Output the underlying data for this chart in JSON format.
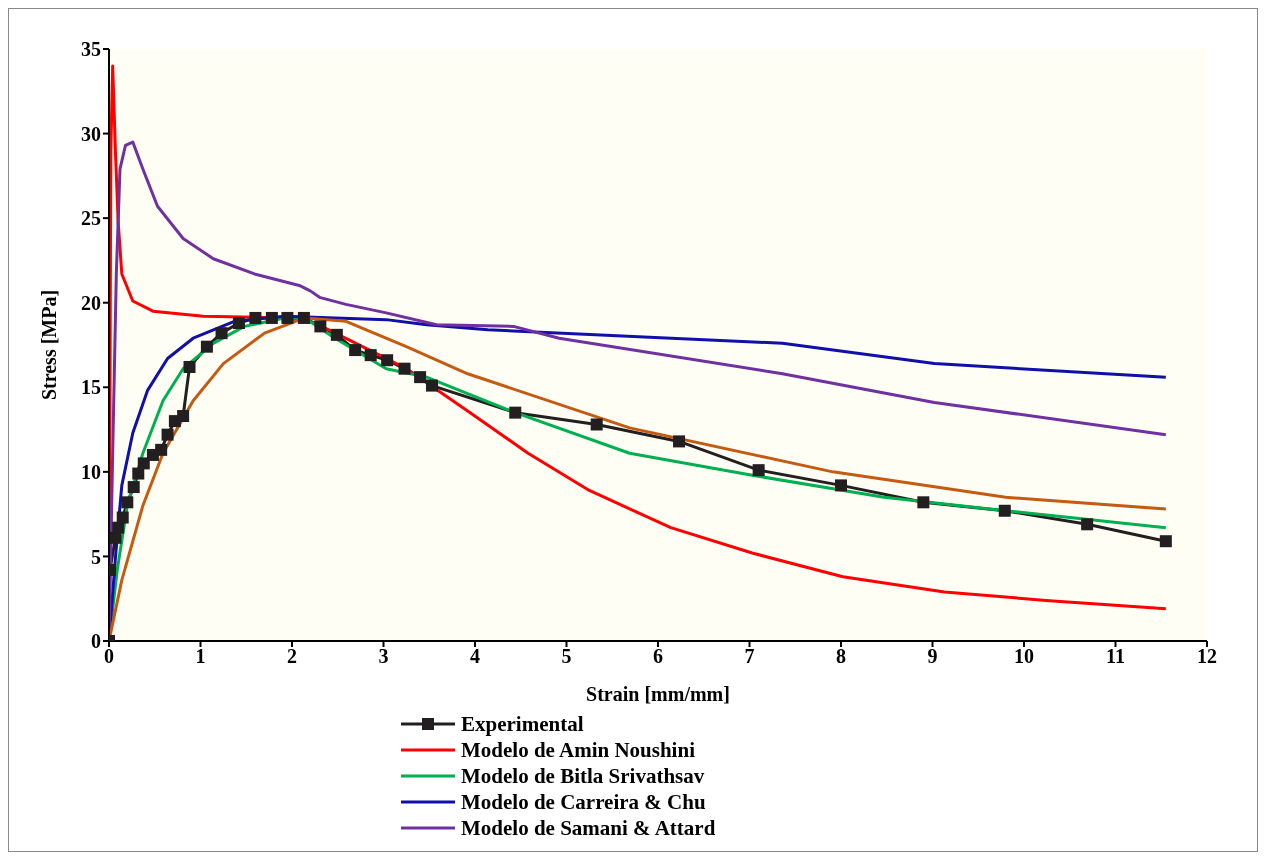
{
  "chart_data": {
    "type": "line",
    "xlabel": "Strain [mm/mm]",
    "ylabel": "Stress [MPa]",
    "xlim": [
      0,
      12
    ],
    "ylim": [
      0,
      35
    ],
    "xticks": [
      0,
      1,
      2,
      3,
      4,
      5,
      6,
      7,
      8,
      9,
      10,
      11,
      12
    ],
    "yticks": [
      0,
      5,
      10,
      15,
      20,
      25,
      30,
      35
    ],
    "grid": false,
    "legend": "bottom",
    "series": [
      {
        "name": "Experimental",
        "color": "#231f20",
        "marker": "square",
        "x": [
          0,
          0.01,
          0.07,
          0.1,
          0.15,
          0.2,
          0.27,
          0.32,
          0.38,
          0.48,
          0.57,
          0.64,
          0.72,
          0.81,
          0.88,
          1.07,
          1.23,
          1.42,
          1.6,
          1.78,
          1.95,
          2.13,
          2.31,
          2.49,
          2.69,
          2.86,
          3.04,
          3.23,
          3.4,
          3.53,
          4.44,
          5.33,
          6.23,
          7.1,
          8.0,
          8.9,
          9.79,
          10.69,
          11.55
        ],
        "values": [
          0,
          4.2,
          6.1,
          6.7,
          7.3,
          8.2,
          9.1,
          9.9,
          10.5,
          11.0,
          11.3,
          12.2,
          13.0,
          13.3,
          16.2,
          17.4,
          18.2,
          18.8,
          19.1,
          19.1,
          19.1,
          19.1,
          18.6,
          18.1,
          17.2,
          16.9,
          16.6,
          16.1,
          15.6,
          15.1,
          13.5,
          12.8,
          11.8,
          10.1,
          9.2,
          8.2,
          7.7,
          6.9,
          5.9
        ]
      },
      {
        "name": "Modelo de Amin Noushini",
        "color": "#ff0000",
        "marker": "none",
        "x": [
          0,
          0.02,
          0.04,
          0.07,
          0.1,
          0.14,
          0.26,
          0.48,
          1.03,
          1.92,
          2.25,
          2.7,
          3.25,
          3.92,
          4.58,
          5.25,
          6.14,
          7.03,
          8.02,
          9.13,
          10.24,
          11.55
        ],
        "values": [
          0,
          29,
          34,
          29,
          24.8,
          21.7,
          20.1,
          19.5,
          19.2,
          19.1,
          18.8,
          17.6,
          16.1,
          13.6,
          11.1,
          8.9,
          6.7,
          5.2,
          3.8,
          2.9,
          2.4,
          1.9
        ]
      },
      {
        "name": "Modelo de Bitla Srivathsav",
        "color": "#00b050",
        "marker": "none",
        "x": [
          0,
          0.09,
          0.2,
          0.37,
          0.59,
          0.81,
          1.14,
          1.48,
          1.92,
          2.14,
          2.47,
          3.03,
          3.47,
          4.44,
          5.69,
          7.03,
          8.47,
          9.8,
          11.55
        ],
        "values": [
          0,
          4.2,
          8,
          11.1,
          14.2,
          16.1,
          17.6,
          18.6,
          19.1,
          19.1,
          17.9,
          16.1,
          15.6,
          13.5,
          11.1,
          9.8,
          8.5,
          7.7,
          6.7
        ]
      },
      {
        "name": "Modelo de Carreira & Chu",
        "color": "#1010a8",
        "marker": "none",
        "x": [
          0,
          0.07,
          0.14,
          0.26,
          0.42,
          0.64,
          0.92,
          1.37,
          1.92,
          3.03,
          3.47,
          4.14,
          7.36,
          9.02,
          11.55
        ],
        "values": [
          0,
          4.9,
          9.2,
          12.3,
          14.8,
          16.7,
          17.9,
          18.9,
          19.2,
          19.0,
          18.7,
          18.4,
          17.6,
          16.4,
          15.6
        ]
      },
      {
        "name": "Modelo de Samani & Attard",
        "color": "#7030a0",
        "marker": "none",
        "x": [
          0,
          0.04,
          0.08,
          0.12,
          0.18,
          0.26,
          0.37,
          0.53,
          0.81,
          1.14,
          1.59,
          2.09,
          2.2,
          2.31,
          2.59,
          3.03,
          3.58,
          4.42,
          4.92,
          7.36,
          9.02,
          11.55
        ],
        "values": [
          0,
          11,
          21.7,
          27.9,
          29.3,
          29.5,
          27.9,
          25.7,
          23.8,
          22.6,
          21.7,
          21.0,
          20.7,
          20.3,
          19.9,
          19.4,
          18.7,
          18.6,
          17.9,
          15.8,
          14.1,
          12.2
        ]
      },
      {
        "color": "#c55a11",
        "marker": "none",
        "x": [
          0,
          0.14,
          0.37,
          0.59,
          0.92,
          1.25,
          1.7,
          2.14,
          2.59,
          3.25,
          3.92,
          5.69,
          7.91,
          9.8,
          11.55
        ],
        "values": [
          0,
          3.6,
          8,
          11.1,
          14.2,
          16.4,
          18.2,
          19.1,
          18.9,
          17.4,
          15.8,
          12.6,
          10.0,
          8.5,
          7.8
        ]
      }
    ]
  }
}
